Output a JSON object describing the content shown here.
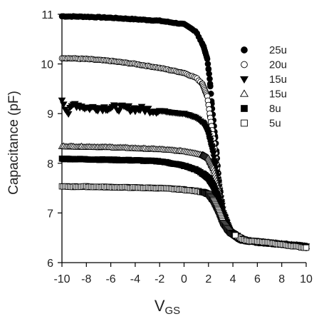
{
  "chart_data": {
    "type": "scatter",
    "title": "",
    "xlabel": "V",
    "xlabel_sub": "GS",
    "ylabel": "Capacitance (pF)",
    "xlim": [
      -10,
      10
    ],
    "ylim": [
      6,
      11
    ],
    "xticks": [
      -10,
      -8,
      -6,
      -4,
      -2,
      0,
      2,
      4,
      6,
      8,
      10
    ],
    "xtick_labels": [
      "-10",
      "-8",
      "-6",
      "-4",
      "-2",
      "0",
      "2",
      "4",
      "6",
      "8",
      "10"
    ],
    "yticks": [
      6,
      7,
      8,
      9,
      10,
      11
    ],
    "ytick_labels": [
      "6",
      "7",
      "8",
      "9",
      "10",
      "11"
    ],
    "grid": false,
    "legend_position": "right",
    "series": [
      {
        "name": "25u",
        "marker": "filled-circle",
        "flat_value": 10.95,
        "end_flat_x": 1.0,
        "hinge_x": 2.3,
        "noise": 0.02,
        "points": [
          [
            -10,
            10.96
          ],
          [
            -8,
            10.95
          ],
          [
            -6,
            10.93
          ],
          [
            -4,
            10.9
          ],
          [
            -2,
            10.87
          ],
          [
            0,
            10.8
          ],
          [
            1,
            10.65
          ],
          [
            1.6,
            10.35
          ],
          [
            1.9,
            10.1
          ],
          [
            2.1,
            9.7
          ],
          [
            2.3,
            9.1
          ],
          [
            2.6,
            8.4
          ],
          [
            3.0,
            7.2
          ],
          [
            3.5,
            6.65
          ],
          [
            4.5,
            6.45
          ],
          [
            6,
            6.4
          ],
          [
            8,
            6.36
          ],
          [
            10,
            6.3
          ]
        ]
      },
      {
        "name": "20u",
        "marker": "open-circle",
        "flat_value": 10.12,
        "points": [
          [
            -10,
            10.12
          ],
          [
            -8,
            10.1
          ],
          [
            -6,
            10.06
          ],
          [
            -4,
            10.0
          ],
          [
            -2,
            9.92
          ],
          [
            0,
            9.82
          ],
          [
            1,
            9.72
          ],
          [
            1.5,
            9.6
          ],
          [
            1.9,
            9.35
          ],
          [
            2.1,
            9.0
          ],
          [
            2.4,
            8.5
          ],
          [
            2.8,
            7.7
          ],
          [
            3.2,
            6.95
          ],
          [
            3.8,
            6.6
          ],
          [
            5,
            6.45
          ],
          [
            7,
            6.4
          ],
          [
            10,
            6.33
          ]
        ]
      },
      {
        "name": "15u",
        "marker": "filled-triangle-down",
        "flat_value": 9.1,
        "points": [
          [
            -10,
            9.3
          ],
          [
            -9.5,
            9.0
          ],
          [
            -9,
            9.2
          ],
          [
            -8,
            9.12
          ],
          [
            -6,
            9.12
          ],
          [
            -4,
            9.1
          ],
          [
            -2,
            9.06
          ],
          [
            0,
            9.0
          ],
          [
            1,
            8.92
          ],
          [
            1.6,
            8.8
          ],
          [
            2.0,
            8.6
          ],
          [
            2.4,
            8.2
          ],
          [
            2.8,
            7.6
          ],
          [
            3.2,
            7.0
          ],
          [
            3.8,
            6.6
          ],
          [
            5,
            6.45
          ],
          [
            7,
            6.4
          ],
          [
            10,
            6.33
          ]
        ]
      },
      {
        "name": "15u",
        "marker": "open-triangle-up",
        "flat_value": 8.3,
        "points": [
          [
            -10,
            8.34
          ],
          [
            -8,
            8.33
          ],
          [
            -6,
            8.32
          ],
          [
            -4,
            8.3
          ],
          [
            -2,
            8.28
          ],
          [
            0,
            8.24
          ],
          [
            1,
            8.2
          ],
          [
            1.6,
            8.16
          ],
          [
            2.0,
            8.1
          ],
          [
            2.4,
            7.9
          ],
          [
            2.8,
            7.5
          ],
          [
            3.2,
            7.0
          ],
          [
            3.8,
            6.62
          ],
          [
            5,
            6.45
          ],
          [
            7,
            6.4
          ],
          [
            10,
            6.33
          ]
        ]
      },
      {
        "name": "8u",
        "marker": "filled-square",
        "flat_value": 8.08,
        "points": [
          [
            -10,
            8.09
          ],
          [
            -8,
            8.08
          ],
          [
            -6,
            8.07
          ],
          [
            -4,
            8.06
          ],
          [
            -2,
            8.04
          ],
          [
            -1,
            8.0
          ],
          [
            0,
            7.95
          ],
          [
            1,
            7.87
          ],
          [
            1.6,
            7.78
          ],
          [
            2.0,
            7.7
          ],
          [
            2.4,
            7.55
          ],
          [
            2.8,
            7.3
          ],
          [
            3.2,
            6.95
          ],
          [
            3.8,
            6.62
          ],
          [
            5,
            6.45
          ],
          [
            7,
            6.4
          ],
          [
            10,
            6.33
          ]
        ]
      },
      {
        "name": "5u",
        "marker": "open-square",
        "flat_value": 7.53,
        "points": [
          [
            -10,
            7.53
          ],
          [
            -8,
            7.53
          ],
          [
            -6,
            7.52
          ],
          [
            -4,
            7.51
          ],
          [
            -2,
            7.5
          ],
          [
            0,
            7.47
          ],
          [
            1,
            7.44
          ],
          [
            1.6,
            7.42
          ],
          [
            2.0,
            7.38
          ],
          [
            2.4,
            7.25
          ],
          [
            2.8,
            7.05
          ],
          [
            3.2,
            6.8
          ],
          [
            3.8,
            6.6
          ],
          [
            5,
            6.45
          ],
          [
            7,
            6.4
          ],
          [
            10,
            6.3
          ]
        ]
      }
    ]
  }
}
